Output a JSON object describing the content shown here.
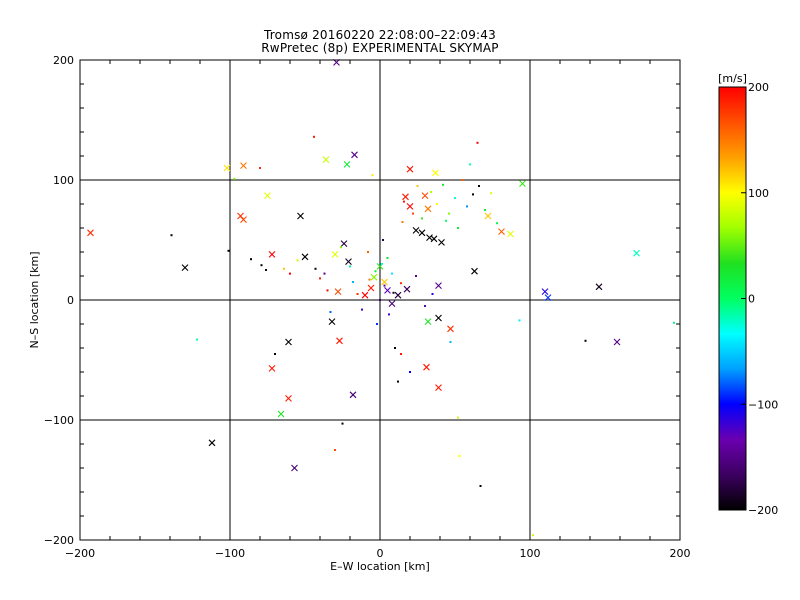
{
  "title_line1": "Tromsø 20160220 22:08:00–22:09:43",
  "title_line2": "RwPretec (8p) EXPERIMENTAL SKYMAP",
  "chart_data": {
    "type": "scatter",
    "xlabel": "E–W location [km]",
    "ylabel": "N–S location [km]",
    "xlim": [
      -200,
      200
    ],
    "ylim": [
      -200,
      200
    ],
    "xticks": [
      -200,
      -100,
      0,
      100,
      200
    ],
    "yticks": [
      -200,
      -100,
      0,
      100,
      200
    ],
    "x_tick_labels": [
      "−200",
      "−100",
      "0",
      "100",
      "200"
    ],
    "y_tick_labels": [
      "−200",
      "−100",
      "0",
      "100",
      "200"
    ],
    "grid": true,
    "grid_lines_x": [
      -100,
      0,
      100
    ],
    "grid_lines_y": [
      -100,
      0,
      100
    ],
    "colorbar": {
      "label": "[m/s]",
      "range": [
        -200,
        200
      ],
      "ticks": [
        200,
        100,
        0,
        -100,
        -200
      ],
      "tick_labels": [
        "200",
        "100",
        "0",
        "−100",
        "−200"
      ],
      "colors": [
        "#000000",
        "#3c0060",
        "#6a00b0",
        "#0000ff",
        "#00a0ff",
        "#00ffff",
        "#00ff60",
        "#20e020",
        "#a0ff00",
        "#ffff00",
        "#ffa000",
        "#ff5000",
        "#ff0000"
      ]
    },
    "series": [
      {
        "marker": "x",
        "points": [
          {
            "x": -193,
            "y": 56,
            "v": 180
          },
          {
            "x": -102,
            "y": 110,
            "v": 110
          },
          {
            "x": -91,
            "y": 112,
            "v": 150
          },
          {
            "x": -91,
            "y": 67,
            "v": 170
          },
          {
            "x": -93,
            "y": 70,
            "v": 180
          },
          {
            "x": -75,
            "y": 87,
            "v": 90
          },
          {
            "x": -130,
            "y": 27,
            "v": -200
          },
          {
            "x": -112,
            "y": -119,
            "v": -200
          },
          {
            "x": -72,
            "y": 38,
            "v": 200
          },
          {
            "x": -72,
            "y": -57,
            "v": 190
          },
          {
            "x": -66,
            "y": -95,
            "v": 30
          },
          {
            "x": -61,
            "y": -35,
            "v": -200
          },
          {
            "x": -61,
            "y": -82,
            "v": 190
          },
          {
            "x": -57,
            "y": -140,
            "v": -160
          },
          {
            "x": -53,
            "y": 70,
            "v": -200
          },
          {
            "x": -50,
            "y": 36,
            "v": -200
          },
          {
            "x": -36,
            "y": 117,
            "v": 80
          },
          {
            "x": -22,
            "y": 113,
            "v": 20
          },
          {
            "x": -24,
            "y": 47,
            "v": -180
          },
          {
            "x": -21,
            "y": 32,
            "v": -190
          },
          {
            "x": -17,
            "y": 121,
            "v": -150
          },
          {
            "x": -18,
            "y": -79,
            "v": -160
          },
          {
            "x": -32,
            "y": -18,
            "v": -200
          },
          {
            "x": -27,
            "y": -34,
            "v": 190
          },
          {
            "x": -29,
            "y": 198,
            "v": -150
          },
          {
            "x": -30,
            "y": 38,
            "v": 90
          },
          {
            "x": -28,
            "y": 7,
            "v": 170
          },
          {
            "x": 20,
            "y": 109,
            "v": 190
          },
          {
            "x": 28,
            "y": 56,
            "v": -200
          },
          {
            "x": 33,
            "y": 52,
            "v": -200
          },
          {
            "x": 36,
            "y": 51,
            "v": -200
          },
          {
            "x": 41,
            "y": 48,
            "v": -200
          },
          {
            "x": 24,
            "y": 58,
            "v": -200
          },
          {
            "x": 17,
            "y": 86,
            "v": 190
          },
          {
            "x": 20,
            "y": 78,
            "v": 200
          },
          {
            "x": 30,
            "y": 87,
            "v": 170
          },
          {
            "x": 32,
            "y": 76,
            "v": 150
          },
          {
            "x": 37,
            "y": 106,
            "v": 100
          },
          {
            "x": 39,
            "y": 12,
            "v": -150
          },
          {
            "x": 39,
            "y": -73,
            "v": 190
          },
          {
            "x": 39,
            "y": -15,
            "v": -200
          },
          {
            "x": 32,
            "y": -18,
            "v": 30
          },
          {
            "x": 31,
            "y": -56,
            "v": 190
          },
          {
            "x": 47,
            "y": -24,
            "v": 180
          },
          {
            "x": 63,
            "y": 24,
            "v": -200
          },
          {
            "x": 72,
            "y": 70,
            "v": 120
          },
          {
            "x": 81,
            "y": 57,
            "v": 160
          },
          {
            "x": 87,
            "y": 55,
            "v": 90
          },
          {
            "x": 95,
            "y": 97,
            "v": 40
          },
          {
            "x": 110,
            "y": 7,
            "v": -110
          },
          {
            "x": 112,
            "y": 2,
            "v": -90
          },
          {
            "x": 146,
            "y": 11,
            "v": -190
          },
          {
            "x": 158,
            "y": -35,
            "v": -150
          },
          {
            "x": 171,
            "y": 39,
            "v": -20
          },
          {
            "x": 0,
            "y": 28,
            "v": 40
          },
          {
            "x": -4,
            "y": 19,
            "v": 60
          },
          {
            "x": 3,
            "y": 15,
            "v": 120
          },
          {
            "x": -6,
            "y": 10,
            "v": 190
          },
          {
            "x": 5,
            "y": 8,
            "v": -130
          },
          {
            "x": 12,
            "y": 4,
            "v": -180
          },
          {
            "x": -10,
            "y": 4,
            "v": 200
          },
          {
            "x": 8,
            "y": -3,
            "v": -160
          },
          {
            "x": 18,
            "y": 9,
            "v": -170
          }
        ]
      },
      {
        "marker": "dot",
        "points": [
          {
            "x": -139,
            "y": 54,
            "v": -200
          },
          {
            "x": -122,
            "y": -33,
            "v": -20
          },
          {
            "x": -101,
            "y": 41,
            "v": -200
          },
          {
            "x": -97,
            "y": 101,
            "v": 60
          },
          {
            "x": -86,
            "y": 34,
            "v": -200
          },
          {
            "x": -80,
            "y": 110,
            "v": 180
          },
          {
            "x": -79,
            "y": 29,
            "v": -200
          },
          {
            "x": -76,
            "y": 25,
            "v": -190
          },
          {
            "x": -70,
            "y": -45,
            "v": -200
          },
          {
            "x": -64,
            "y": 26,
            "v": 120
          },
          {
            "x": -60,
            "y": 22,
            "v": 200
          },
          {
            "x": -55,
            "y": 33,
            "v": 80
          },
          {
            "x": -44,
            "y": 136,
            "v": 190
          },
          {
            "x": -43,
            "y": 26,
            "v": -200
          },
          {
            "x": -40,
            "y": 18,
            "v": 190
          },
          {
            "x": -37,
            "y": 22,
            "v": -150
          },
          {
            "x": -35,
            "y": 8,
            "v": 200
          },
          {
            "x": -33,
            "y": -10,
            "v": -80
          },
          {
            "x": -30,
            "y": -125,
            "v": 170
          },
          {
            "x": -25,
            "y": -103,
            "v": -200
          },
          {
            "x": -26,
            "y": 44,
            "v": 60
          },
          {
            "x": -20,
            "y": 28,
            "v": -10
          },
          {
            "x": -18,
            "y": 15,
            "v": -60
          },
          {
            "x": -15,
            "y": 5,
            "v": 180
          },
          {
            "x": -12,
            "y": -8,
            "v": -120
          },
          {
            "x": -8,
            "y": 40,
            "v": 160
          },
          {
            "x": -5,
            "y": 104,
            "v": 110
          },
          {
            "x": 2,
            "y": 50,
            "v": -180
          },
          {
            "x": 5,
            "y": 35,
            "v": 30
          },
          {
            "x": 8,
            "y": 22,
            "v": -40
          },
          {
            "x": 10,
            "y": -40,
            "v": -200
          },
          {
            "x": 12,
            "y": -68,
            "v": -200
          },
          {
            "x": 14,
            "y": -45,
            "v": 190
          },
          {
            "x": 15,
            "y": 65,
            "v": 150
          },
          {
            "x": 16,
            "y": 82,
            "v": 190
          },
          {
            "x": 22,
            "y": 72,
            "v": 170
          },
          {
            "x": 25,
            "y": 95,
            "v": 120
          },
          {
            "x": 28,
            "y": 68,
            "v": 40
          },
          {
            "x": 34,
            "y": 90,
            "v": 70
          },
          {
            "x": 38,
            "y": 80,
            "v": 100
          },
          {
            "x": 42,
            "y": 96,
            "v": 30
          },
          {
            "x": 44,
            "y": 66,
            "v": 0
          },
          {
            "x": 46,
            "y": 72,
            "v": 60
          },
          {
            "x": 50,
            "y": 85,
            "v": -30
          },
          {
            "x": 52,
            "y": 60,
            "v": 20
          },
          {
            "x": 55,
            "y": 100,
            "v": 160
          },
          {
            "x": 58,
            "y": 78,
            "v": -70
          },
          {
            "x": 60,
            "y": 113,
            "v": -20
          },
          {
            "x": 62,
            "y": 88,
            "v": -200
          },
          {
            "x": 65,
            "y": 131,
            "v": 200
          },
          {
            "x": 66,
            "y": 95,
            "v": -200
          },
          {
            "x": 70,
            "y": 75,
            "v": 20
          },
          {
            "x": 74,
            "y": 89,
            "v": 90
          },
          {
            "x": 78,
            "y": 64,
            "v": 10
          },
          {
            "x": 53,
            "y": -130,
            "v": 100
          },
          {
            "x": 52,
            "y": -98,
            "v": 80
          },
          {
            "x": 67,
            "y": -155,
            "v": -200
          },
          {
            "x": 47,
            "y": -35,
            "v": -60
          },
          {
            "x": 93,
            "y": -17,
            "v": -40
          },
          {
            "x": 137,
            "y": -34,
            "v": -200
          },
          {
            "x": 196,
            "y": -19,
            "v": -10
          },
          {
            "x": 102,
            "y": -196,
            "v": 80
          },
          {
            "x": 20,
            "y": -60,
            "v": -100
          },
          {
            "x": 30,
            "y": -5,
            "v": -140
          },
          {
            "x": 35,
            "y": 5,
            "v": -110
          },
          {
            "x": 24,
            "y": 20,
            "v": -150
          },
          {
            "x": 6,
            "y": -12,
            "v": -120
          },
          {
            "x": -2,
            "y": -20,
            "v": -90
          },
          {
            "x": 0,
            "y": 0,
            "v": -160
          },
          {
            "x": 3,
            "y": 12,
            "v": -140
          },
          {
            "x": -3,
            "y": 24,
            "v": 20
          },
          {
            "x": 1,
            "y": 30,
            "v": -30
          },
          {
            "x": 9,
            "y": 6,
            "v": -190
          },
          {
            "x": 14,
            "y": 14,
            "v": 180
          },
          {
            "x": -7,
            "y": 17,
            "v": 150
          }
        ]
      }
    ]
  }
}
